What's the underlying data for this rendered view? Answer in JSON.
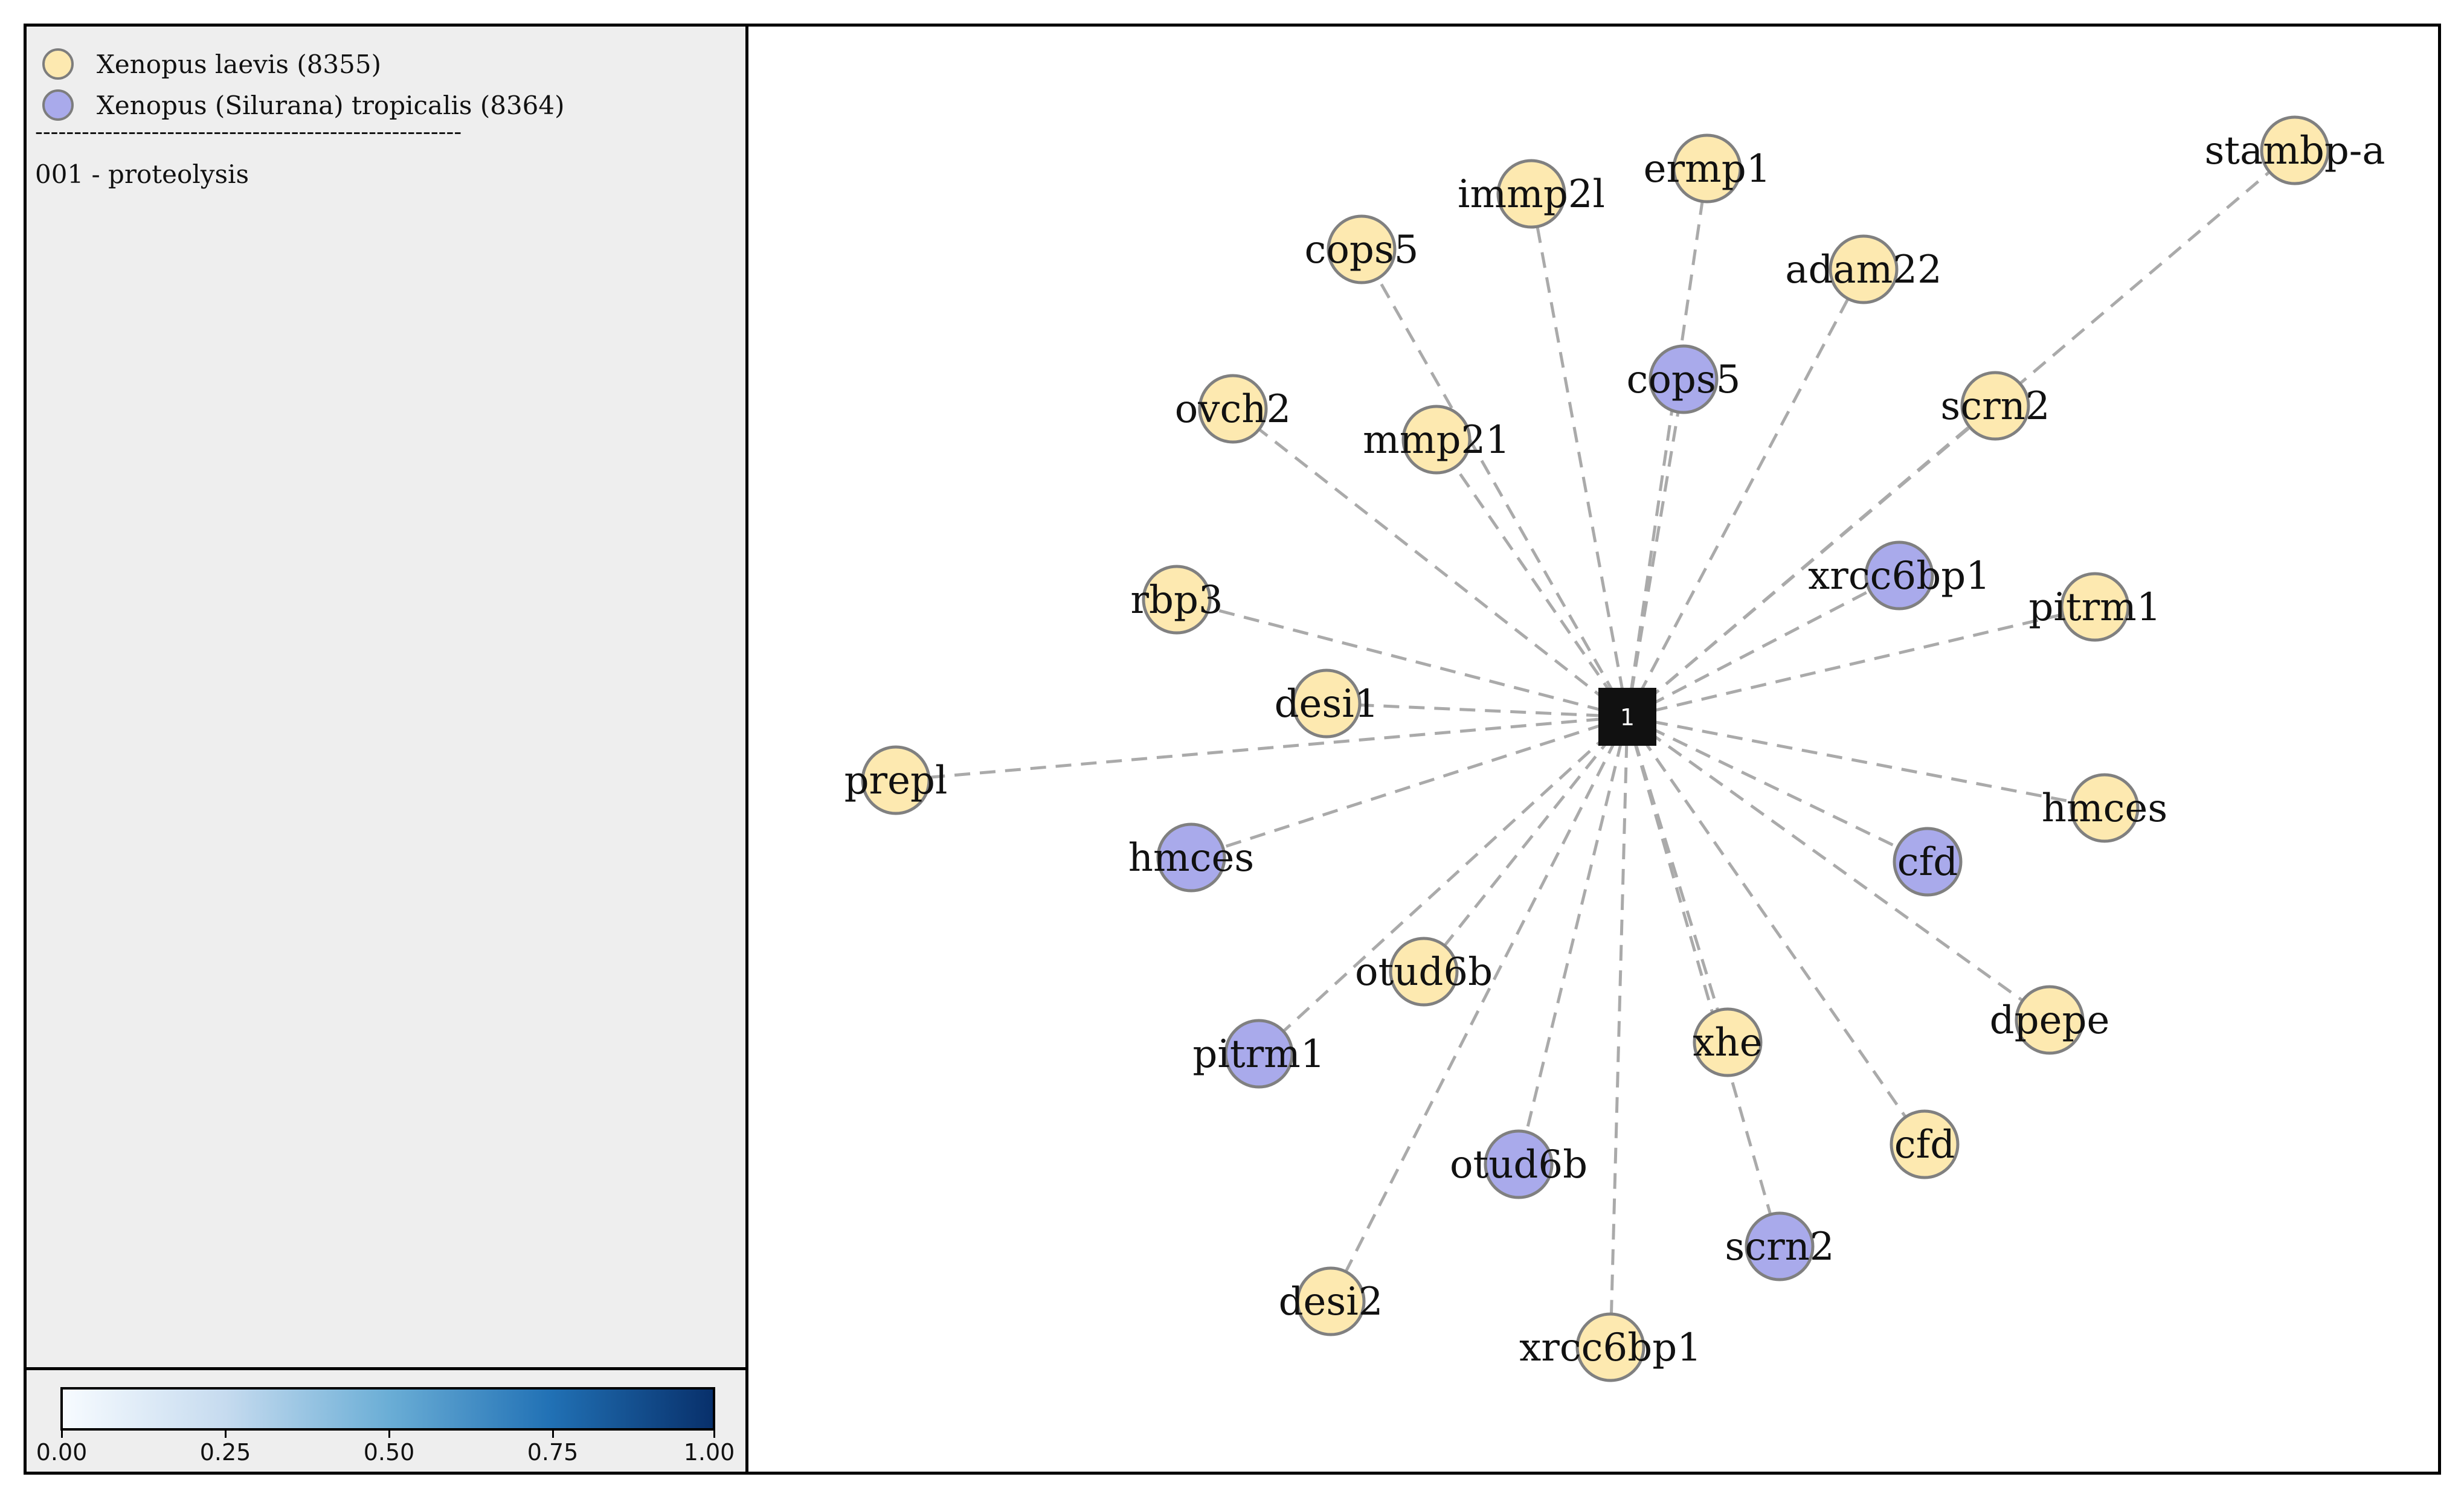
{
  "legend": {
    "species": [
      {
        "name": "Xenopus laevis (8355)",
        "color": "#fde9b0"
      },
      {
        "name": "Xenopus (Silurana) tropicalis (8364)",
        "color": "#a9aaeb"
      }
    ],
    "divider": "-------------------------------------------------------",
    "cluster": "001 - proteolysis"
  },
  "colorbar": {
    "ticks": [
      "0.00",
      "0.25",
      "0.50",
      "0.75",
      "1.00"
    ],
    "colors": [
      "#f7fbff",
      "#c6dbef",
      "#6baed6",
      "#2171b5",
      "#08306b"
    ]
  },
  "network": {
    "hub": {
      "label": "1",
      "color": "#111111"
    },
    "edge_color": "#aaaaaa",
    "nodes": [
      {
        "label": "stambp-a",
        "species": 0
      },
      {
        "label": "ermp1",
        "species": 0
      },
      {
        "label": "immp2l",
        "species": 0
      },
      {
        "label": "cops5",
        "species": 0
      },
      {
        "label": "adam22",
        "species": 0
      },
      {
        "label": "cops5",
        "species": 1
      },
      {
        "label": "scrn2",
        "species": 0
      },
      {
        "label": "ovch2",
        "species": 0
      },
      {
        "label": "mmp21",
        "species": 0
      },
      {
        "label": "xrcc6bp1",
        "species": 1
      },
      {
        "label": "pitrm1",
        "species": 0
      },
      {
        "label": "rbp3",
        "species": 0
      },
      {
        "label": "desi1",
        "species": 0
      },
      {
        "label": "prepl",
        "species": 0
      },
      {
        "label": "hmces",
        "species": 0
      },
      {
        "label": "hmces",
        "species": 1
      },
      {
        "label": "cfd",
        "species": 1
      },
      {
        "label": "otud6b",
        "species": 0
      },
      {
        "label": "dpepe",
        "species": 0
      },
      {
        "label": "pitrm1",
        "species": 1
      },
      {
        "label": "xhe",
        "species": 0
      },
      {
        "label": "cfd",
        "species": 0
      },
      {
        "label": "otud6b",
        "species": 1
      },
      {
        "label": "scrn2",
        "species": 1
      },
      {
        "label": "desi2",
        "species": 0
      },
      {
        "label": "xrcc6bp1",
        "species": 0
      }
    ]
  }
}
